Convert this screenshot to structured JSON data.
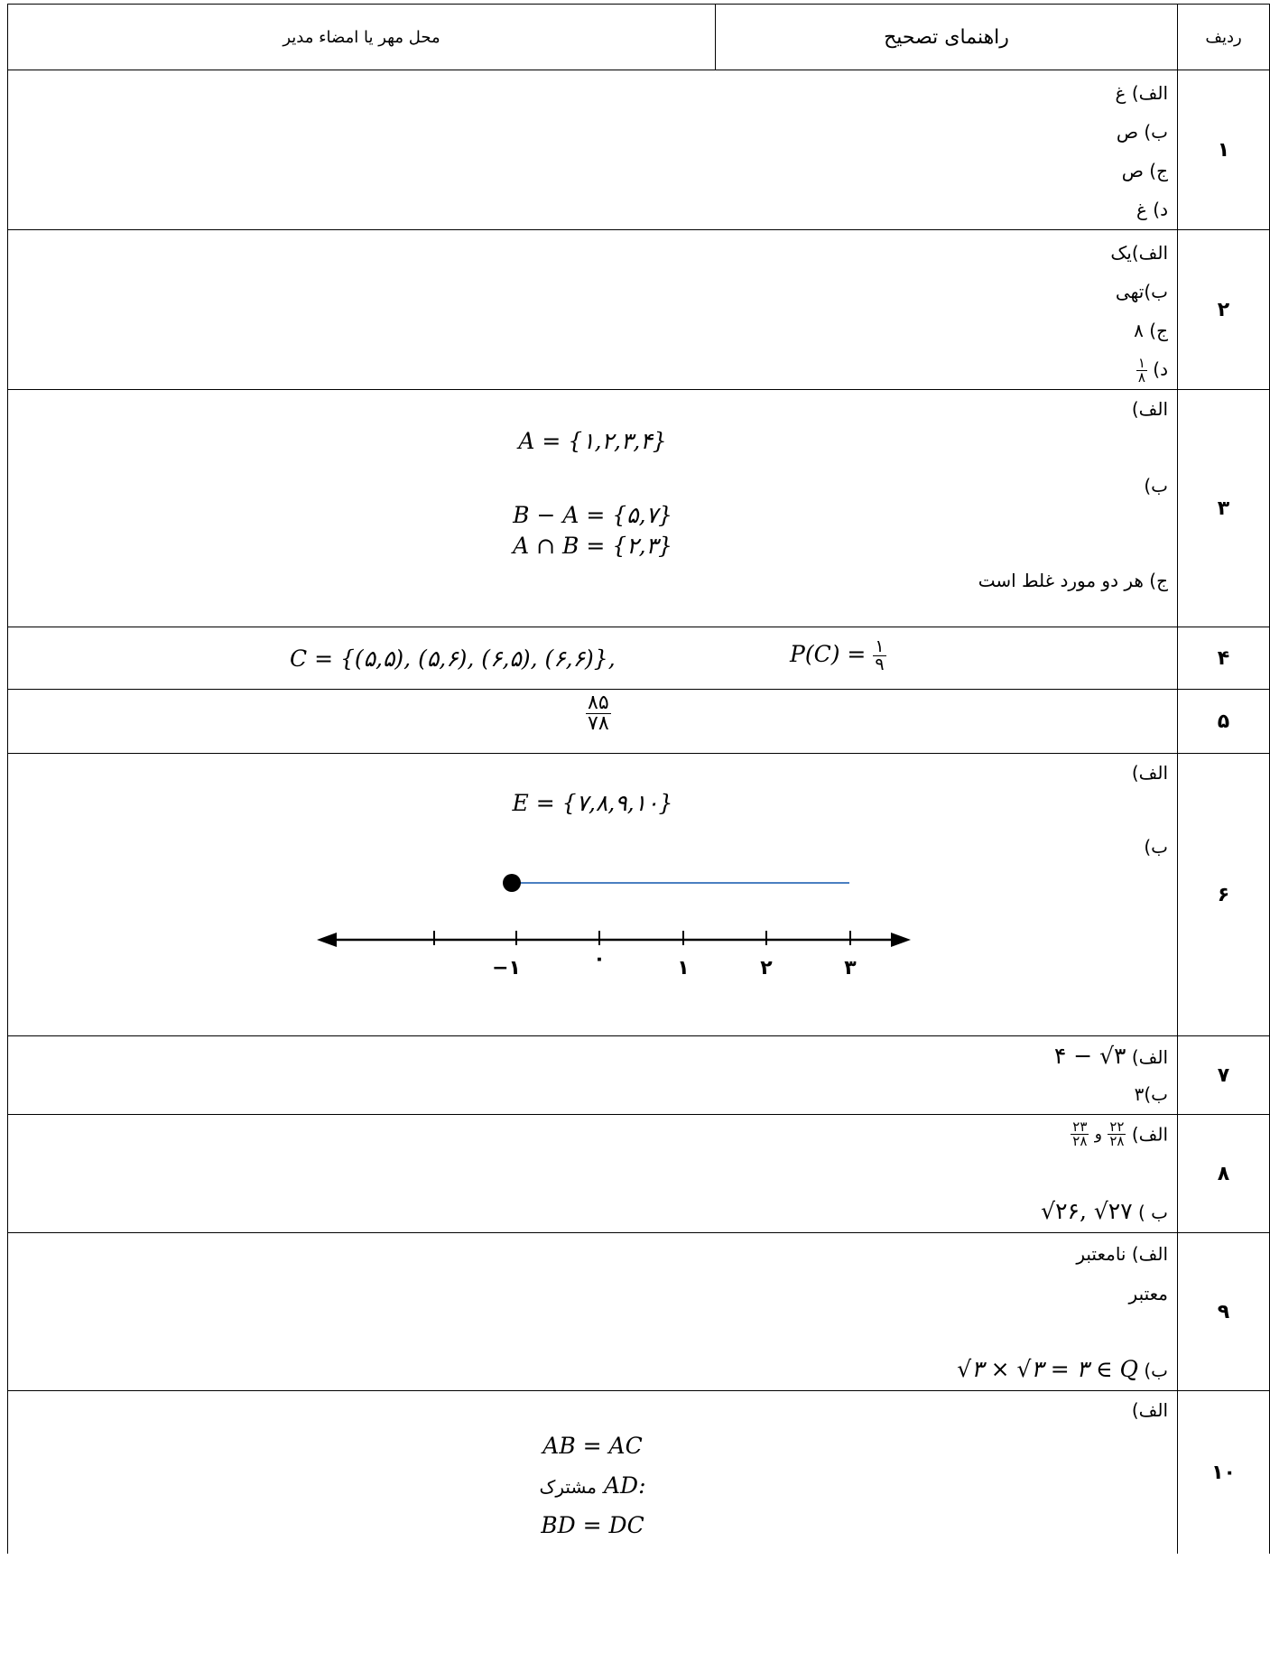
{
  "header": {
    "row_col": "ردیف",
    "guide_col": "راهنمای تصحیح",
    "seal_col": "محل مهر یا امضاء مدیر"
  },
  "rows": {
    "r1": {
      "num": "۱",
      "a": "الف) غ",
      "b": "ب) ص",
      "c": "ج) ص",
      "d": "د) غ"
    },
    "r2": {
      "num": "۲",
      "a": "الف)یک",
      "b": "ب)تهی",
      "c": "ج) ۸",
      "d_prefix": "د)",
      "d_num": "۱",
      "d_den": "۸"
    },
    "r3": {
      "num": "۳",
      "a": "الف)",
      "a_math": "A = {۱,۲,۳,۴}",
      "b": "ب)",
      "b_math1": "B − A = {۵,۷}",
      "b_math2": "A ∩ B = {۲,۳}",
      "c": "ج) هر دو مورد غلط است"
    },
    "r4": {
      "num": "۴",
      "math1": "C = {(۵,۵), (۵,۶), (۶,۵), (۶,۶)},",
      "p_label": "P(C) =",
      "p_num": "۱",
      "p_den": "۹"
    },
    "r5": {
      "num": "۵",
      "num_val": "۸۵",
      "den_val": "۷۸"
    },
    "r6": {
      "num": "۶",
      "a": "الف)",
      "a_math": "E = {۷,۸,۹,۱۰}",
      "b": "ب)",
      "axis_ticks": [
        "−۱",
        "۰",
        "۱",
        "۲",
        "۳"
      ]
    },
    "r7": {
      "num": "۷",
      "a_prefix": "الف)",
      "a_math": "۴ − √۳",
      "b": "ب)۳"
    },
    "r8": {
      "num": "۸",
      "a_prefix": "الف)",
      "f1_num": "۲۲",
      "f1_den": "۲۸",
      "and": "و",
      "f2_num": "۲۳",
      "f2_den": "۲۸",
      "b_prefix": "ب )",
      "b_math": "√۲۶, √۲۷"
    },
    "r9": {
      "num": "۹",
      "a": "الف) نامعتبر",
      "a2": "معتبر",
      "b_prefix": "ب)",
      "b_math": "√۳ × √۳ = ۳ ∈ Q"
    },
    "r10": {
      "num": "۱۰",
      "a": "الف)",
      "m1": "AB = AC",
      "m2_var": "AD:",
      "m2_word": "مشترک",
      "m3": "BD = DC"
    }
  }
}
